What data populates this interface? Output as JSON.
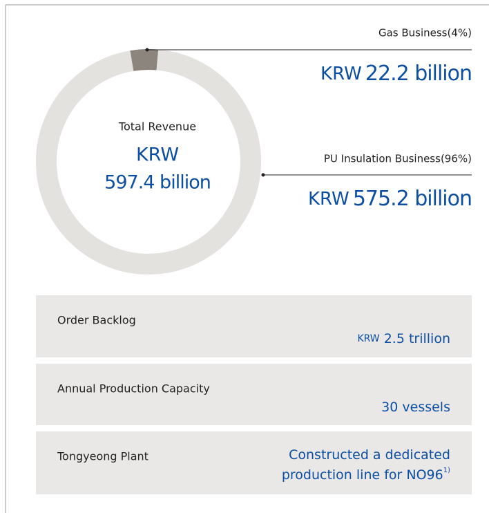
{
  "chart_data": {
    "type": "pie",
    "categories": [
      "Gas Business(4%)",
      "PU Insulation Business(96%)"
    ],
    "values": [
      4,
      96
    ],
    "colors": [
      "#8b857e",
      "#e4e2df"
    ],
    "amount_units": [
      "KRW",
      "KRW"
    ],
    "amounts": [
      "22.2 billion",
      "575.2 billion"
    ],
    "center_title": "Total Revenue",
    "center_unit": "KRW",
    "center_value": "597.4 billion"
  },
  "panels": [
    {
      "label": "Order Backlog",
      "unit": "KRW",
      "value": "2.5 trillion"
    },
    {
      "label": "Annual Production Capacity",
      "value": "30 vessels"
    },
    {
      "label": "Tongyeong Plant",
      "value_lines": [
        "Constructed a dedicated",
        "production line for NO96"
      ],
      "note": "1)"
    }
  ]
}
